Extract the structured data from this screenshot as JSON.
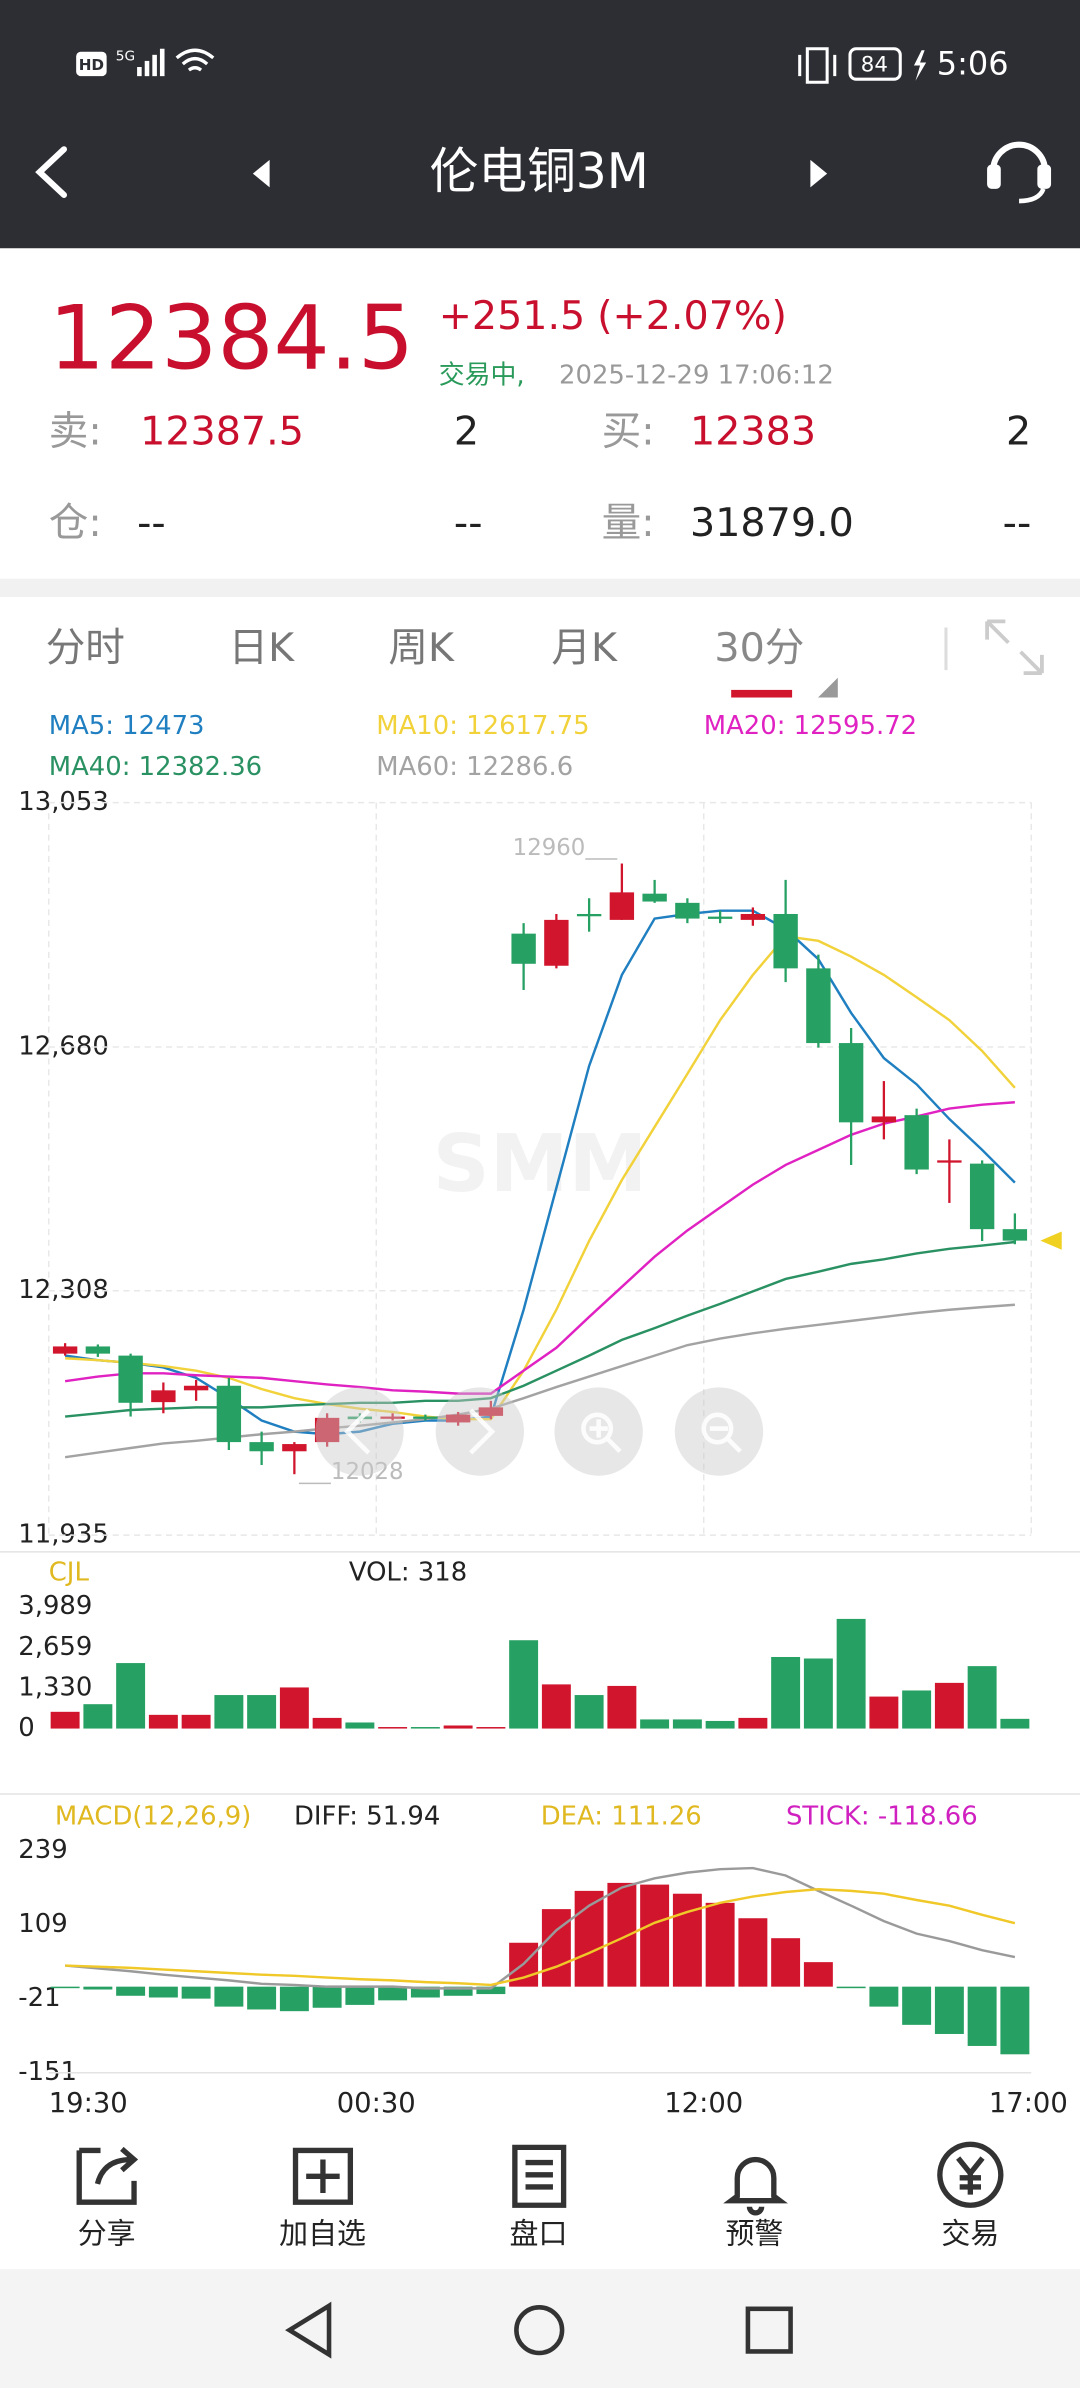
{
  "status_bar": {
    "hd": "HD",
    "network": "5G",
    "battery": "84",
    "time": "5:06"
  },
  "nav": {
    "title": "伦电铜3M"
  },
  "quote": {
    "price": "12384.5",
    "change": "+251.5",
    "change_pct": "(+2.07%)",
    "status": "交易中,",
    "timestamp": "2025-12-29 17:06:12",
    "sell_label": "卖:",
    "sell_price": "12387.5",
    "sell_qty": "2",
    "buy_label": "买:",
    "buy_price": "12383",
    "buy_qty": "2",
    "position_label": "仓:",
    "position": "--",
    "position_qty": "--",
    "volume_label": "量:",
    "volume": "31879.0",
    "volume_qty": "--"
  },
  "tabs": {
    "items": [
      "分时",
      "日K",
      "周K",
      "月K",
      "30分"
    ],
    "active": 4
  },
  "chart_data": [
    {
      "type": "candlestick",
      "watermark": "SMM",
      "annotations": [
        "12960",
        "12028"
      ],
      "up_color": "#d0152d",
      "down_color": "#27a063",
      "ylim": [
        11935,
        13053
      ],
      "yticks": [
        {
          "value": 13053,
          "label": "13,053"
        },
        {
          "value": 12680,
          "label": "12,680"
        },
        {
          "value": 12308,
          "label": "12,308"
        },
        {
          "value": 11935,
          "label": "11,935"
        }
      ],
      "grid": true,
      "open": [
        12212,
        12223,
        12209,
        12138,
        12156,
        12163,
        12077,
        12063,
        12077,
        12116,
        12114,
        12116,
        12107,
        12117,
        12853,
        12804,
        12883,
        12874,
        12914,
        12900,
        12879,
        12874,
        12883,
        12800,
        12686,
        12565,
        12576,
        12504,
        12502,
        12402
      ],
      "high": [
        12228,
        12226,
        12212,
        12168,
        12172,
        12175,
        12093,
        12077,
        12121,
        12121,
        12121,
        12119,
        12123,
        12140,
        12869,
        12883,
        12907,
        12960,
        12935,
        12907,
        12888,
        12893,
        12935,
        12821,
        12709,
        12628,
        12586,
        12539,
        12507,
        12426
      ],
      "low": [
        12209,
        12207,
        12116,
        12121,
        12140,
        12065,
        12042,
        12028,
        12070,
        12107,
        12110,
        12110,
        12102,
        12112,
        12767,
        12800,
        12856,
        12874,
        12900,
        12869,
        12869,
        12865,
        12779,
        12679,
        12500,
        12539,
        12486,
        12442,
        12384,
        12379
      ],
      "close": [
        12223,
        12212,
        12137,
        12156,
        12163,
        12077,
        12063,
        12074,
        12114,
        12112,
        12116,
        12114,
        12119,
        12130,
        12807,
        12874,
        12881,
        12916,
        12902,
        12876,
        12877,
        12883,
        12800,
        12686,
        12565,
        12574,
        12493,
        12507,
        12402,
        12384.5
      ],
      "series": [
        {
          "label": "MA5: 12473",
          "color": "#1f7fc0",
          "values": [
            12209,
            12202,
            12198,
            12191,
            12175,
            12144,
            12110,
            12093,
            12089,
            12093,
            12105,
            12110,
            12110,
            12116,
            12279,
            12465,
            12651,
            12790,
            12876,
            12883,
            12888,
            12888,
            12860,
            12814,
            12732,
            12663,
            12623,
            12570,
            12523,
            12473
          ]
        },
        {
          "label": "MA10: 12617.75",
          "color": "#f2d23a",
          "values": [
            12205,
            12202,
            12198,
            12193,
            12186,
            12175,
            12158,
            12144,
            12135,
            12128,
            12123,
            12116,
            12112,
            12112,
            12186,
            12279,
            12384,
            12477,
            12558,
            12639,
            12721,
            12790,
            12849,
            12842,
            12818,
            12790,
            12756,
            12721,
            12674,
            12617.75
          ]
        },
        {
          "label": "MA20: 12595.72",
          "color": "#e022c2",
          "values": [
            12170,
            12177,
            12182,
            12182,
            12179,
            12177,
            12175,
            12170,
            12165,
            12161,
            12156,
            12154,
            12151,
            12151,
            12186,
            12221,
            12268,
            12314,
            12360,
            12400,
            12435,
            12470,
            12500,
            12523,
            12546,
            12563,
            12574,
            12586,
            12592,
            12595.72
          ]
        },
        {
          "label": "MA40: 12382.36",
          "color": "#2a9163",
          "values": [
            12116,
            12121,
            12126,
            12128,
            12130,
            12130,
            12130,
            12133,
            12135,
            12137,
            12137,
            12140,
            12140,
            12144,
            12163,
            12186,
            12209,
            12233,
            12251,
            12270,
            12288,
            12307,
            12326,
            12337,
            12349,
            12356,
            12365,
            12372,
            12377,
            12382.36
          ]
        },
        {
          "label": "MA60: 12286.6",
          "color": "#a3a3a3",
          "values": [
            12054,
            12061,
            12068,
            12075,
            12079,
            12084,
            12089,
            12093,
            12098,
            12102,
            12107,
            12112,
            12119,
            12128,
            12144,
            12161,
            12177,
            12193,
            12209,
            12225,
            12235,
            12243,
            12250,
            12256,
            12262,
            12268,
            12274,
            12279,
            12283,
            12286.6
          ]
        }
      ]
    },
    {
      "type": "bar",
      "title": "CJL",
      "subtitle": "VOL: 318",
      "ylim": [
        0,
        3989
      ],
      "yticks": [
        {
          "value": 3989,
          "label": "3,989"
        },
        {
          "value": 2659,
          "label": "2,659"
        },
        {
          "value": 1330,
          "label": "1,330"
        },
        0
      ],
      "values": [
        548,
        798,
        2144,
        449,
        449,
        1097,
        1097,
        1346,
        349,
        199,
        50,
        50,
        100,
        50,
        2892,
        1446,
        1097,
        1396,
        299,
        299,
        249,
        349,
        2343,
        2294,
        3590,
        1047,
        1247,
        1496,
        2044,
        318
      ]
    },
    {
      "type": "macd",
      "title": "MACD(12,26,9)",
      "legend": [
        "DIFF: 51.94",
        "DEA: 111.26",
        "STICK: -118.66"
      ],
      "ylim": [
        -151,
        239
      ],
      "yticks": [
        239,
        109,
        -21,
        -151
      ],
      "xticks": [
        "19:30",
        "00:30",
        "12:00",
        "17:00"
      ],
      "stick": [
        -2,
        -5,
        -16,
        -19,
        -21,
        -35,
        -40,
        -43,
        -37,
        -32,
        -24,
        -19,
        -16,
        -13,
        77,
        136,
        168,
        182,
        179,
        163,
        147,
        120,
        85,
        43,
        -2,
        -35,
        -67,
        -83,
        -104,
        -118.66
      ],
      "series": [
        {
          "name": "DIFF",
          "color": "#9a9a9a",
          "values": [
            37,
            32,
            27,
            21,
            16,
            11,
            5,
            3,
            0,
            0,
            0,
            -3,
            -3,
            -3,
            40,
            99,
            142,
            174,
            190,
            200,
            206,
            208,
            195,
            168,
            142,
            115,
            93,
            80,
            64,
            51.94
          ]
        },
        {
          "name": "DEA",
          "color": "#f0c828",
          "values": [
            37,
            35,
            33,
            30,
            27,
            24,
            21,
            19,
            16,
            13,
            11,
            8,
            6,
            3,
            16,
            35,
            59,
            85,
            112,
            131,
            147,
            158,
            166,
            171,
            168,
            163,
            152,
            142,
            126,
            111.26
          ]
        }
      ]
    }
  ],
  "toolbar": [
    "分享",
    "加自选",
    "盘口",
    "预警",
    "交易"
  ]
}
